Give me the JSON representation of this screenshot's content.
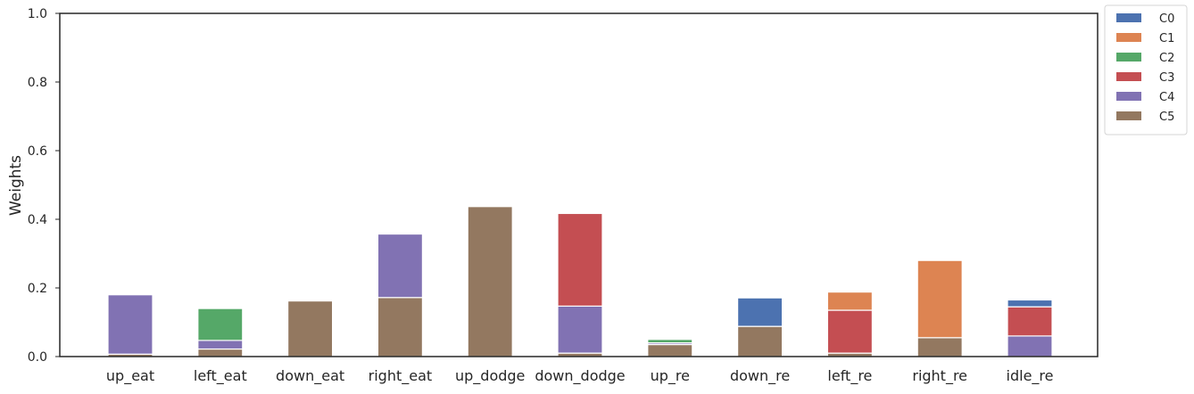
{
  "chart_data": {
    "type": "bar",
    "stacked": true,
    "categories": [
      "up_eat",
      "left_eat",
      "down_eat",
      "right_eat",
      "up_dodge",
      "down_dodge",
      "up_re",
      "down_re",
      "left_re",
      "right_re",
      "idle_re"
    ],
    "series": [
      {
        "name": "C0",
        "color": "#4c72b0",
        "values": [
          0,
          0,
          0,
          0,
          0,
          0,
          0,
          0.083,
          0,
          0,
          0.02
        ]
      },
      {
        "name": "C1",
        "color": "#dd8452",
        "values": [
          0,
          0,
          0,
          0,
          0,
          0,
          0,
          0,
          0.053,
          0.225,
          0
        ]
      },
      {
        "name": "C2",
        "color": "#55a868",
        "values": [
          0,
          0.093,
          0,
          0,
          0,
          0,
          0.01,
          0,
          0,
          0,
          0
        ]
      },
      {
        "name": "C3",
        "color": "#c44e52",
        "values": [
          0,
          0,
          0,
          0,
          0,
          0.27,
          0,
          0,
          0.125,
          0,
          0.085
        ]
      },
      {
        "name": "C4",
        "color": "#8172b3",
        "values": [
          0.173,
          0.025,
          0,
          0.185,
          0,
          0.137,
          0.005,
          0,
          0,
          0,
          0.06
        ]
      },
      {
        "name": "C5",
        "color": "#937860",
        "values": [
          0.007,
          0.022,
          0.162,
          0.172,
          0.437,
          0.01,
          0.035,
          0.088,
          0.01,
          0.055,
          0
        ]
      }
    ],
    "xlabel": "",
    "ylabel": "Weights",
    "ylim": [
      0,
      1
    ],
    "yticks": [
      "0.0",
      "0.2",
      "0.4",
      "0.6",
      "0.8",
      "1.0"
    ],
    "legend": "outside-upper-right",
    "grid": false
  }
}
